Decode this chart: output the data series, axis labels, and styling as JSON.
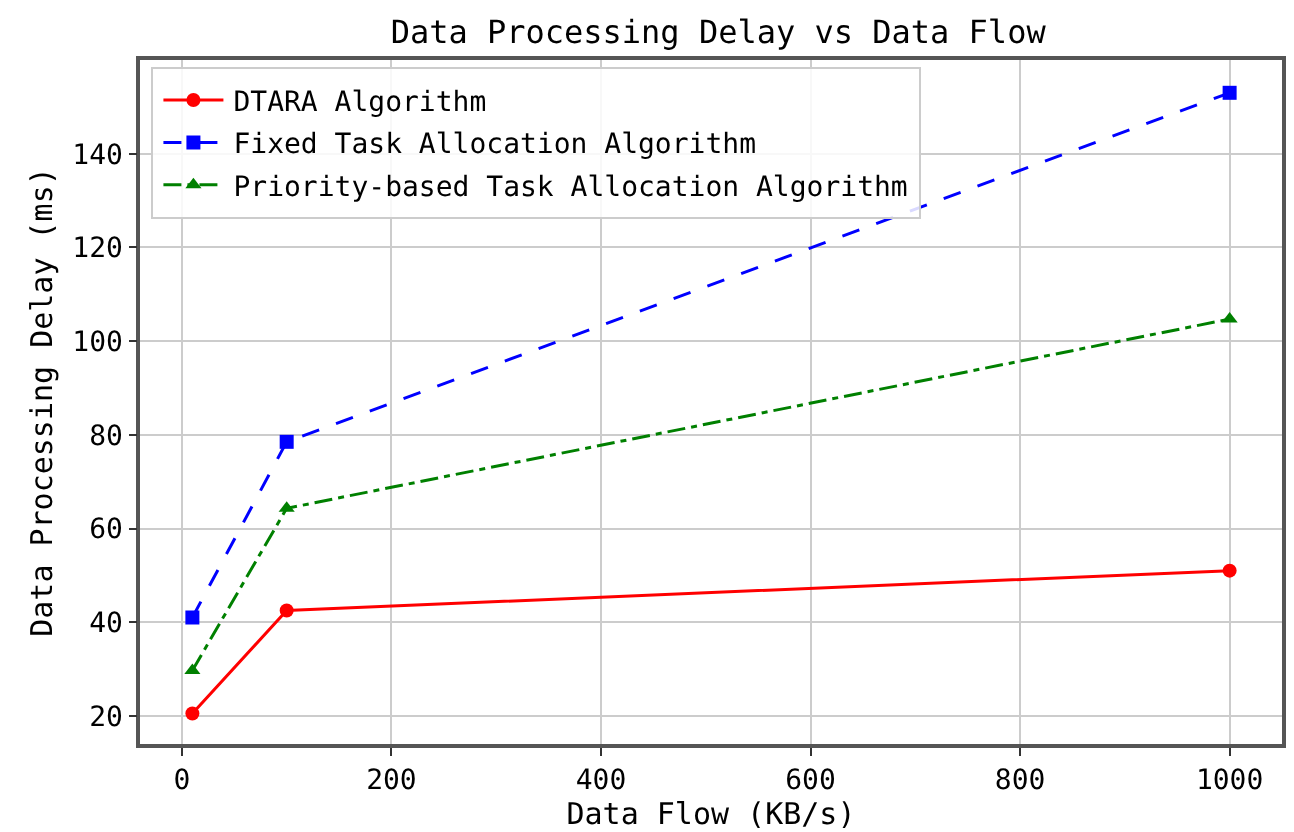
{
  "chart_data": {
    "type": "line",
    "title": "Data Processing Delay vs Data Flow",
    "xlabel": "Data Flow (KB/s)",
    "ylabel": "Data Processing Delay (ms)",
    "x": [
      10,
      100,
      1000
    ],
    "series": [
      {
        "name": "DTARA Algorithm",
        "color": "#ff0000",
        "values": [
          20.5,
          42.5,
          51
        ],
        "marker": "circle",
        "line_style": "solid"
      },
      {
        "name": "Fixed Task Allocation Algorithm",
        "color": "#0000ff",
        "values": [
          41,
          78.5,
          153
        ],
        "marker": "square",
        "line_style": "dashed"
      },
      {
        "name": "Priority-based Task Allocation Algorithm",
        "color": "#008000",
        "values": [
          29.7,
          64.3,
          104.7
        ],
        "marker": "triangle",
        "line_style": "dashdot"
      }
    ],
    "xlim": [
      -40,
      1050
    ],
    "xticks": [
      0,
      200,
      400,
      600,
      800,
      1000
    ],
    "ylim": [
      14,
      160
    ],
    "yticks": [
      20,
      40,
      60,
      80,
      100,
      120,
      140
    ],
    "grid": true,
    "legend": "top left"
  }
}
